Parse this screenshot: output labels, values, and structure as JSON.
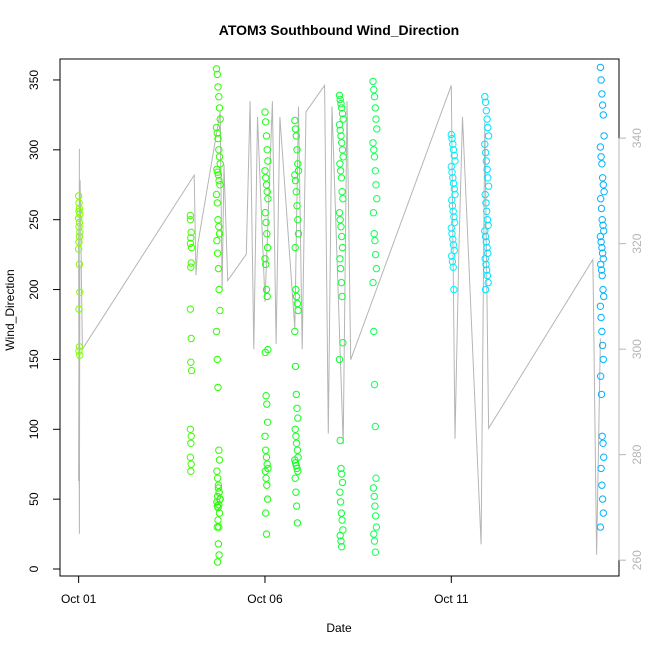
{
  "chart_data": {
    "type": "scatter",
    "title": "ATOM3 Southbound Wind_Direction",
    "xlabel": "Date",
    "ylabel": "Wind_Direction",
    "x_ticks": [
      {
        "label": "Oct 01",
        "value": 0
      },
      {
        "label": "Oct 06",
        "value": 5
      },
      {
        "label": "Oct 11",
        "value": 10
      }
    ],
    "xlim": [
      -0.5,
      14.5
    ],
    "y_ticks": [
      0,
      50,
      100,
      150,
      200,
      250,
      300,
      350
    ],
    "ylim": [
      -5,
      365
    ],
    "y2_ticks": [
      260,
      280,
      300,
      320,
      340
    ],
    "y2lim": [
      257,
      355
    ],
    "grid": false,
    "series": [
      {
        "color": "#b5b5b5",
        "kind": "line",
        "axis": "right",
        "x": [
          0.0,
          0.02,
          0.01,
          0.03,
          0.02,
          0.0,
          0.04,
          0.1,
          3.1,
          3.15,
          3.2,
          3.8,
          3.85,
          3.9,
          4.0,
          4.5,
          4.6,
          4.7,
          4.8,
          5.0,
          5.2,
          5.3,
          5.4,
          5.8,
          5.9,
          6.0,
          6.1,
          6.6,
          6.7,
          6.8,
          7.1,
          7.2,
          7.3,
          10.0,
          10.1,
          10.2,
          10.3,
          10.8,
          10.9,
          11.0,
          13.8,
          13.9,
          14.0
        ],
        "y": [
          275,
          338,
          290,
          316,
          265,
          320,
          332,
          300,
          333,
          314,
          320,
          345,
          311,
          335,
          313,
          318,
          347,
          300,
          344,
          309,
          347,
          301,
          344,
          304,
          346,
          300,
          345,
          350,
          284,
          346,
          282,
          347,
          298,
          350,
          283,
          318,
          344,
          263,
          343,
          285,
          317,
          261,
          302
        ]
      },
      {
        "color": "#7fff00",
        "kind": "points",
        "x": [
          0.0,
          0.01,
          0.02,
          0.01,
          0.03,
          0.0,
          0.02,
          0.01,
          0.03,
          0.02,
          0.01,
          0.0,
          0.02,
          0.03,
          0.01,
          0.02,
          0.01,
          0.03
        ],
        "y": [
          267,
          262,
          258,
          256,
          254,
          251,
          248,
          245,
          241,
          238,
          234,
          229,
          218,
          198,
          186,
          159,
          156,
          153
        ]
      },
      {
        "color": "#3fff00",
        "kind": "points",
        "x": [
          3.0,
          3.0,
          3.02,
          3.01,
          3.0,
          3.03,
          3.02,
          3.01,
          3.0,
          3.02,
          3.01,
          3.03,
          3.0,
          3.02,
          3.01,
          3.0,
          3.02,
          3.01
        ],
        "y": [
          253,
          250,
          241,
          237,
          233,
          230,
          219,
          216,
          186,
          165,
          148,
          142,
          100,
          95,
          90,
          80,
          75,
          70
        ],
        "_": ""
      },
      {
        "color": "#2eff00",
        "kind": "points",
        "x": [
          3.7,
          3.72,
          3.74,
          3.76,
          3.78,
          3.8,
          3.7,
          3.72,
          3.74,
          3.76,
          3.78,
          3.8,
          3.71,
          3.73,
          3.75,
          3.77,
          3.79,
          3.7,
          3.72,
          3.74,
          3.76,
          3.78,
          3.71,
          3.73,
          3.75,
          3.77,
          3.79,
          3.7,
          3.72,
          3.74,
          3.76,
          3.78,
          3.71,
          3.73,
          3.75,
          3.77,
          3.8,
          3.72,
          3.74,
          3.76
        ],
        "y": [
          358,
          354,
          345,
          338,
          330,
          322,
          316,
          312,
          308,
          300,
          295,
          290,
          286,
          284,
          282,
          278,
          275,
          268,
          262,
          250,
          245,
          240,
          235,
          226,
          215,
          200,
          185,
          170,
          150,
          130,
          85,
          78,
          70,
          65,
          60,
          55,
          50,
          45,
          35,
          30
        ],
        "_": ""
      },
      {
        "color": "#22ff00",
        "kind": "points",
        "x": [
          3.75,
          3.77,
          3.73,
          3.79,
          3.71,
          3.76,
          3.74,
          3.78,
          3.72,
          3.75,
          3.77,
          3.73
        ],
        "y": [
          58,
          55,
          52,
          50,
          48,
          46,
          44,
          40,
          30,
          18,
          10,
          5
        ],
        "_": ""
      },
      {
        "color": "#18ff10",
        "kind": "points",
        "x": [
          5.0,
          5.02,
          5.04,
          5.06,
          5.08,
          5.0,
          5.02,
          5.04,
          5.06,
          5.08,
          5.01,
          5.03,
          5.05,
          5.07,
          5.0,
          5.02,
          5.04,
          5.06,
          5.08,
          5.01,
          5.03,
          5.05,
          5.07,
          5.0,
          5.02,
          5.04,
          5.06,
          5.08,
          5.01,
          5.03,
          5.05,
          5.07,
          5.02,
          5.04
        ],
        "y": [
          327,
          320,
          310,
          300,
          292,
          285,
          280,
          275,
          270,
          265,
          255,
          248,
          240,
          230,
          222,
          218,
          200,
          195,
          157,
          155,
          124,
          118,
          105,
          95,
          85,
          80,
          75,
          72,
          70,
          65,
          60,
          50,
          40,
          25
        ],
        "_": ""
      },
      {
        "color": "#10ff20",
        "kind": "points",
        "x": [
          5.8,
          5.82,
          5.84,
          5.86,
          5.88,
          5.9,
          5.8,
          5.82,
          5.84,
          5.86,
          5.88,
          5.9,
          5.81,
          5.83,
          5.85,
          5.87,
          5.89,
          5.8,
          5.82,
          5.84,
          5.86,
          5.88,
          5.81,
          5.83,
          5.85,
          5.87,
          5.89,
          5.8,
          5.82,
          5.84,
          5.86,
          5.88,
          5.81,
          5.83,
          5.85,
          5.87
        ],
        "y": [
          321,
          315,
          310,
          300,
          290,
          285,
          282,
          278,
          270,
          260,
          250,
          240,
          230,
          200,
          195,
          190,
          185,
          170,
          145,
          125,
          115,
          108,
          100,
          95,
          90,
          85,
          80,
          78,
          76,
          74,
          72,
          70,
          65,
          55,
          45,
          33
        ],
        "_": ""
      },
      {
        "color": "#10ff3a",
        "kind": "points",
        "x": [
          7.0,
          7.02,
          7.04,
          7.06,
          7.08,
          7.1,
          7.0,
          7.02,
          7.04,
          7.06,
          7.08,
          7.1,
          7.01,
          7.03,
          7.05,
          7.07,
          7.09,
          7.0,
          7.02,
          7.04,
          7.06,
          7.08,
          7.01,
          7.03,
          7.05,
          7.07,
          7.09,
          7.0,
          7.02,
          7.04,
          7.06,
          7.08,
          7.01,
          7.03,
          7.05,
          7.07,
          7.09,
          7.02,
          7.04,
          7.06
        ],
        "y": [
          339,
          336,
          333,
          330,
          326,
          322,
          318,
          314,
          310,
          305,
          300,
          295,
          290,
          285,
          280,
          270,
          265,
          255,
          250,
          245,
          238,
          230,
          222,
          215,
          205,
          195,
          162,
          150,
          92,
          72,
          68,
          62,
          55,
          48,
          40,
          35,
          28,
          24,
          20,
          16
        ],
        "_": ""
      },
      {
        "color": "#10ff58",
        "kind": "points",
        "x": [
          7.9,
          7.92,
          7.94,
          7.96,
          7.98,
          8.0,
          7.9,
          7.92,
          7.94,
          7.96,
          7.98,
          8.0,
          7.91,
          7.93,
          7.95,
          7.97,
          7.99,
          7.9,
          7.92,
          7.94,
          7.96,
          7.98,
          7.91,
          7.93,
          7.95,
          7.97,
          7.99,
          7.92,
          7.94,
          7.96
        ],
        "y": [
          349,
          343,
          338,
          330,
          322,
          315,
          305,
          300,
          295,
          285,
          275,
          265,
          255,
          240,
          235,
          225,
          215,
          205,
          170,
          132,
          102,
          65,
          58,
          52,
          45,
          38,
          30,
          25,
          20,
          12
        ],
        "_": ""
      },
      {
        "color": "#00f0ff",
        "kind": "points",
        "x": [
          10.0,
          10.02,
          10.04,
          10.06,
          10.08,
          10.1,
          10.0,
          10.02,
          10.04,
          10.06,
          10.08,
          10.1,
          10.01,
          10.03,
          10.05,
          10.07,
          10.09,
          10.0,
          10.02,
          10.04,
          10.06,
          10.08,
          10.01,
          10.03,
          10.05,
          10.07
        ],
        "y": [
          311,
          308,
          304,
          300,
          296,
          292,
          288,
          284,
          280,
          276,
          272,
          268,
          264,
          260,
          256,
          252,
          248,
          244,
          240,
          236,
          232,
          228,
          224,
          220,
          216,
          200
        ],
        "_": ""
      },
      {
        "color": "#00e0ff",
        "kind": "points",
        "x": [
          10.9,
          10.92,
          10.94,
          10.96,
          10.98,
          11.0,
          10.9,
          10.92,
          10.94,
          10.96,
          10.98,
          11.0,
          10.91,
          10.93,
          10.95,
          10.97,
          10.99,
          10.9,
          10.92,
          10.94,
          10.96,
          10.98,
          10.91,
          10.93,
          10.95,
          10.97,
          10.99,
          10.92
        ],
        "y": [
          338,
          334,
          328,
          322,
          316,
          310,
          304,
          298,
          292,
          286,
          280,
          274,
          268,
          262,
          256,
          250,
          246,
          242,
          238,
          234,
          230,
          226,
          222,
          218,
          214,
          210,
          205,
          200
        ],
        "_": ""
      },
      {
        "color": "#00b4ff",
        "kind": "points",
        "x": [
          14.0,
          14.02,
          14.04,
          14.06,
          14.08,
          14.1,
          14.0,
          14.02,
          14.04,
          14.06,
          14.08,
          14.1,
          14.01,
          14.03,
          14.05,
          14.07,
          14.09,
          14.0,
          14.02,
          14.04,
          14.06,
          14.08,
          14.01,
          14.03,
          14.05,
          14.07,
          14.09,
          14.0,
          14.02,
          14.04,
          14.06,
          14.08,
          14.01,
          14.03,
          14.05,
          14.07,
          14.09,
          14.02,
          14.04,
          14.06,
          14.08,
          14.0
        ],
        "y": [
          359,
          350,
          340,
          332,
          325,
          310,
          302,
          295,
          290,
          280,
          275,
          270,
          265,
          258,
          250,
          246,
          242,
          238,
          234,
          230,
          226,
          222,
          218,
          214,
          210,
          200,
          195,
          188,
          180,
          170,
          160,
          150,
          138,
          125,
          95,
          90,
          80,
          72,
          60,
          50,
          40,
          30
        ],
        "_": ""
      }
    ]
  }
}
